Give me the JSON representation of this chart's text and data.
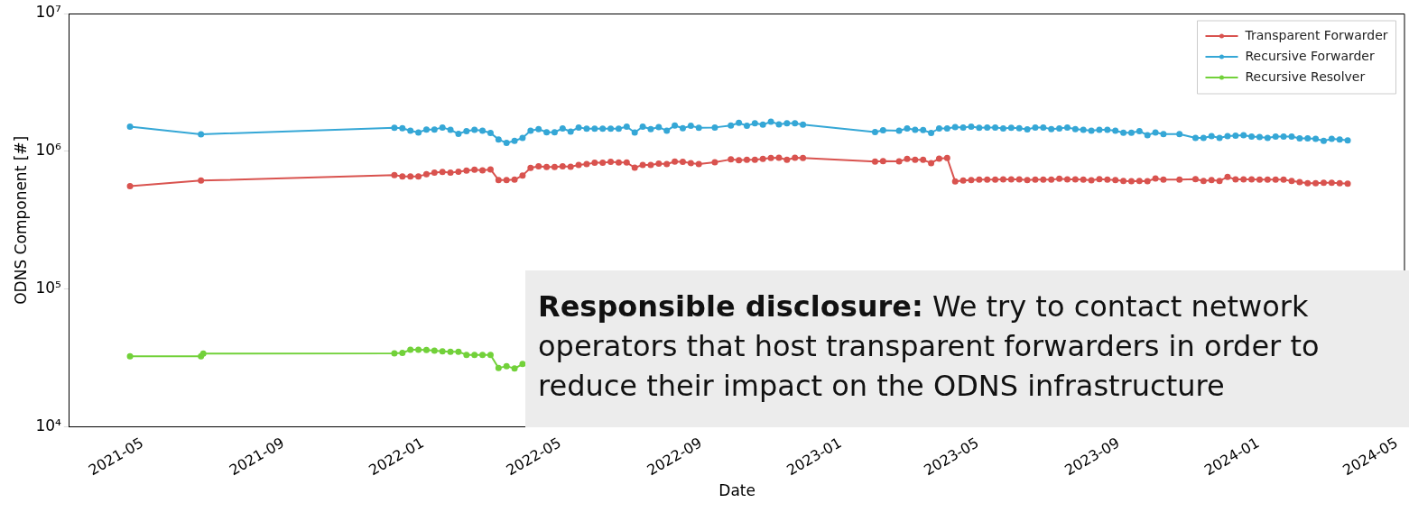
{
  "chart_data": {
    "type": "line",
    "xlabel": "Date",
    "ylabel": "ODNS Component [#]",
    "log": "y",
    "grid": false,
    "legend": "top right",
    "marker": "circle",
    "line_style": "solid",
    "xlim": [
      "2021-02-26",
      "2024-05-08"
    ],
    "xticks": [
      "2021-05",
      "2021-09",
      "2022-01",
      "2022-05",
      "2022-09",
      "2023-01",
      "2023-05",
      "2023-09",
      "2024-01",
      "2024-05"
    ],
    "ylim": [
      10000,
      10000000
    ],
    "yticks": [
      {
        "value": 10000,
        "label": "10⁴"
      },
      {
        "value": 100000,
        "label": "10⁵"
      },
      {
        "value": 1000000,
        "label": "10⁶"
      },
      {
        "value": 10000000,
        "label": "10⁷"
      }
    ],
    "annotations": [
      "Responsible disclosure: We try to contact network operators that host transparent forwarders in order to reduce their impact on the ODNS infrastructure"
    ],
    "x": [
      "2021-04-20",
      "2021-06-21",
      "2021-12-07",
      "2021-12-14",
      "2021-12-21",
      "2021-12-28",
      "2022-01-04",
      "2022-01-11",
      "2022-01-18",
      "2022-01-25",
      "2022-02-01",
      "2022-02-08",
      "2022-02-15",
      "2022-02-22",
      "2022-03-01",
      "2022-03-08",
      "2022-03-15",
      "2022-03-22",
      "2022-03-29",
      "2022-04-05",
      "2022-04-12",
      "2022-04-19",
      "2022-04-26",
      "2022-05-03",
      "2022-05-10",
      "2022-05-17",
      "2022-05-24",
      "2022-05-31",
      "2022-06-07",
      "2022-06-14",
      "2022-06-21",
      "2022-06-28",
      "2022-07-05",
      "2022-07-12",
      "2022-07-19",
      "2022-07-26",
      "2022-08-02",
      "2022-08-09",
      "2022-08-16",
      "2022-08-23",
      "2022-08-30",
      "2022-09-13",
      "2022-09-27",
      "2022-10-04",
      "2022-10-11",
      "2022-10-18",
      "2022-10-25",
      "2022-11-01",
      "2022-11-08",
      "2022-11-15",
      "2022-11-22",
      "2022-11-29",
      "2023-01-31",
      "2023-02-07",
      "2023-02-21",
      "2023-02-28",
      "2023-03-07",
      "2023-03-14",
      "2023-03-21",
      "2023-03-28",
      "2023-04-04",
      "2023-04-11",
      "2023-04-18",
      "2023-04-25",
      "2023-05-02",
      "2023-05-09",
      "2023-05-16",
      "2023-05-23",
      "2023-05-30",
      "2023-06-06",
      "2023-06-13",
      "2023-06-20",
      "2023-06-27",
      "2023-07-04",
      "2023-07-11",
      "2023-07-18",
      "2023-07-25",
      "2023-08-01",
      "2023-08-08",
      "2023-08-15",
      "2023-08-22",
      "2023-08-29",
      "2023-09-05",
      "2023-09-12",
      "2023-09-19",
      "2023-09-26",
      "2023-10-03",
      "2023-10-10",
      "2023-10-24",
      "2023-11-07",
      "2023-11-14",
      "2023-11-21",
      "2023-11-28",
      "2023-12-05",
      "2023-12-12",
      "2023-12-19",
      "2023-12-26",
      "2024-01-02",
      "2024-01-09",
      "2024-01-16",
      "2024-01-23",
      "2024-01-30",
      "2024-02-06",
      "2024-02-13",
      "2024-02-20",
      "2024-02-27",
      "2024-03-05",
      "2024-03-12",
      "2024-03-19"
    ],
    "series": [
      {
        "name": "Transparent Forwarder",
        "color": "#d9534f",
        "values": [
          558000,
          613000,
          671000,
          658000,
          658000,
          658000,
          681000,
          699000,
          707000,
          699000,
          710000,
          724000,
          735000,
          728000,
          739000,
          619000,
          619000,
          622000,
          668000,
          757000,
          777000,
          768000,
          768000,
          777000,
          773000,
          797000,
          809000,
          825000,
          825000,
          838000,
          829000,
          829000,
          761000,
          797000,
          797000,
          813000,
          809000,
          842000,
          838000,
          821000,
          809000,
          834000,
          873000,
          863000,
          867000,
          867000,
          880000,
          894000,
          899000,
          867000,
          899000,
          894000,
          842000,
          850000,
          846000,
          880000,
          867000,
          867000,
          821000,
          886000,
          894000,
          604000,
          613000,
          619000,
          622000,
          622000,
          622000,
          625000,
          625000,
          625000,
          619000,
          622000,
          622000,
          622000,
          632000,
          625000,
          625000,
          622000,
          616000,
          628000,
          622000,
          619000,
          610000,
          607000,
          610000,
          607000,
          635000,
          622000,
          622000,
          628000,
          610000,
          619000,
          610000,
          651000,
          625000,
          625000,
          625000,
          622000,
          622000,
          622000,
          622000,
          610000,
          598000,
          586000,
          586000,
          592000,
          592000,
          586000,
          583000
        ]
      },
      {
        "name": "Recursive Forwarder",
        "color": "#35a7d6",
        "values": [
          1510000,
          1330000,
          1480000,
          1470000,
          1410000,
          1370000,
          1440000,
          1440000,
          1490000,
          1430000,
          1340000,
          1400000,
          1430000,
          1410000,
          1360000,
          1220000,
          1150000,
          1190000,
          1250000,
          1410000,
          1450000,
          1375000,
          1375000,
          1465000,
          1390000,
          1490000,
          1460000,
          1460000,
          1460000,
          1460000,
          1460000,
          1510000,
          1370000,
          1510000,
          1450000,
          1500000,
          1410000,
          1540000,
          1470000,
          1530000,
          1480000,
          1490000,
          1540000,
          1610000,
          1530000,
          1600000,
          1560000,
          1640000,
          1570000,
          1600000,
          1600000,
          1560000,
          1380000,
          1420000,
          1410000,
          1465000,
          1430000,
          1425000,
          1360000,
          1465000,
          1465000,
          1500000,
          1490000,
          1510000,
          1480000,
          1490000,
          1490000,
          1465000,
          1480000,
          1470000,
          1445000,
          1490000,
          1490000,
          1450000,
          1465000,
          1490000,
          1450000,
          1430000,
          1410000,
          1430000,
          1430000,
          1410000,
          1365000,
          1365000,
          1400000,
          1310000,
          1370000,
          1335000,
          1335000,
          1250000,
          1250000,
          1290000,
          1250000,
          1290000,
          1300000,
          1310000,
          1280000,
          1270000,
          1250000,
          1280000,
          1280000,
          1280000,
          1240000,
          1240000,
          1230000,
          1190000,
          1230000,
          1220000,
          1200000
        ]
      },
      {
        "name": "Recursive Resolver",
        "color": "#72d13a",
        "x": [
          "2021-04-20",
          "2021-06-21",
          "2021-06-23",
          "2021-12-07",
          "2021-12-14",
          "2021-12-21",
          "2021-12-28",
          "2022-01-04",
          "2022-01-11",
          "2022-01-18",
          "2022-01-25",
          "2022-02-01",
          "2022-02-08",
          "2022-02-15",
          "2022-02-22",
          "2022-03-01",
          "2022-03-08",
          "2022-03-15",
          "2022-03-22",
          "2022-03-29"
        ],
        "values": [
          32500,
          32500,
          34000,
          34200,
          34400,
          36300,
          36300,
          36100,
          35700,
          35300,
          35100,
          35100,
          33300,
          33300,
          33300,
          33300,
          26700,
          27600,
          26500,
          28600
        ]
      }
    ]
  }
}
